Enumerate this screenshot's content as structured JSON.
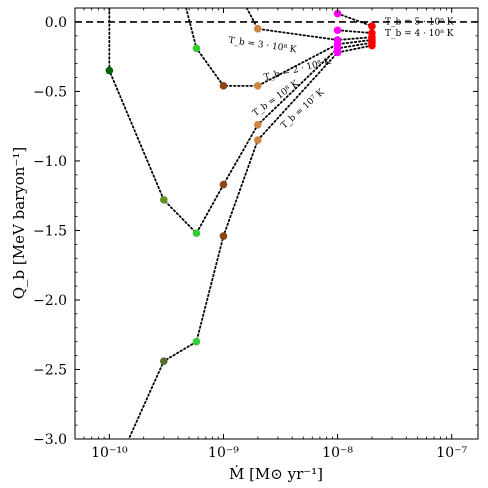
{
  "chart_data": {
    "type": "scatter",
    "xlabel": "Ṁ [M⊙ yr⁻¹]",
    "ylabel": "Q_b [MeV baryon⁻¹]",
    "xscale": "log",
    "xlim": [
      5e-11,
      1.7e-07
    ],
    "ylim": [
      -3.0,
      0.1
    ],
    "x_ticks": [
      1e-10,
      1e-09,
      1e-08,
      1e-07
    ],
    "x_tick_labels": [
      "10⁻¹⁰",
      "10⁻⁹",
      "10⁻⁸",
      "10⁻⁷"
    ],
    "y_ticks": [
      0.0,
      -0.5,
      -1.0,
      -1.5,
      -2.0,
      -2.5,
      -3.0
    ],
    "y_tick_labels": [
      "0.0",
      "−0.5",
      "−1.0",
      "−1.5",
      "−2.0",
      "−2.5",
      "−3.0"
    ],
    "reference_line": {
      "y": 0.0,
      "style": "dashed",
      "color": "#000000"
    },
    "series": [
      {
        "name": "T_b = 10⁷ K",
        "points": [
          {
            "x": 1.15e-10,
            "y": -3.2,
            "color": null
          },
          {
            "x": 3e-10,
            "y": -2.44,
            "color": "#556b2f"
          },
          {
            "x": 5.8e-10,
            "y": -2.3,
            "color": "#32cd32"
          },
          {
            "x": 1e-09,
            "y": -1.54,
            "color": "#8b4513"
          },
          {
            "x": 2e-09,
            "y": -0.85,
            "color": "#cd853f"
          },
          {
            "x": 1e-08,
            "y": -0.22,
            "color": "#ff00ff"
          },
          {
            "x": 2e-08,
            "y": -0.17,
            "color": "#ff0000"
          }
        ]
      },
      {
        "name": "T_b = 10⁸ K",
        "points": [
          {
            "x": 1e-10,
            "y": 0.1,
            "color": null
          },
          {
            "x": 1e-10,
            "y": -0.35,
            "color": "#006400"
          },
          {
            "x": 3e-10,
            "y": -1.28,
            "color": "#6b8e23"
          },
          {
            "x": 5.8e-10,
            "y": -1.52,
            "color": "#32cd32"
          },
          {
            "x": 1e-09,
            "y": -1.17,
            "color": "#8b4513"
          },
          {
            "x": 2e-09,
            "y": -0.74,
            "color": "#cd853f"
          },
          {
            "x": 1e-08,
            "y": -0.19,
            "color": "#ff00ff"
          },
          {
            "x": 2e-08,
            "y": -0.15,
            "color": "#ff0000"
          }
        ]
      },
      {
        "name": "T_b = 2 · 10⁸ K",
        "points": [
          {
            "x": 4.7e-10,
            "y": 0.1,
            "color": null
          },
          {
            "x": 5.8e-10,
            "y": -0.19,
            "color": "#32cd32"
          },
          {
            "x": 1e-09,
            "y": -0.46,
            "color": "#8b4513"
          },
          {
            "x": 2e-09,
            "y": -0.46,
            "color": "#cd853f"
          },
          {
            "x": 1e-08,
            "y": -0.16,
            "color": "#ff00ff"
          },
          {
            "x": 2e-08,
            "y": -0.13,
            "color": "#ff0000"
          }
        ]
      },
      {
        "name": "T_b = 3 · 10⁸ K",
        "points": [
          {
            "x": 1.6e-09,
            "y": 0.1,
            "color": null
          },
          {
            "x": 2e-09,
            "y": -0.05,
            "color": "#cd853f"
          },
          {
            "x": 1e-08,
            "y": -0.13,
            "color": "#ff00ff"
          },
          {
            "x": 2e-08,
            "y": -0.11,
            "color": "#ff0000"
          }
        ]
      },
      {
        "name": "T_b = 4 · 10⁸ K",
        "points": [
          {
            "x": 1e-08,
            "y": -0.06,
            "color": "#ff00ff"
          },
          {
            "x": 2e-08,
            "y": -0.08,
            "color": "#ff0000"
          }
        ]
      },
      {
        "name": "T_b = 5 · 10⁸ K",
        "points": [
          {
            "x": 1e-08,
            "y": 0.06,
            "color": "#ff00ff"
          },
          {
            "x": 2e-08,
            "y": -0.03,
            "color": "#ff0000"
          }
        ]
      }
    ],
    "annotations": [
      {
        "text": "T_b = 5 · 10⁸ K",
        "x": 2.6e-08,
        "y": -0.02,
        "rotate": 0
      },
      {
        "text": "T_b = 4 · 10⁸ K",
        "x": 2.6e-08,
        "y": -0.1,
        "rotate": 0
      },
      {
        "text": "T_b = 3 · 10⁸ K",
        "x": 1.1e-09,
        "y": -0.15,
        "rotate": 8
      },
      {
        "text": "T_b = 2 · 10⁸ K",
        "x": 2.3e-09,
        "y": -0.42,
        "rotate": -14
      },
      {
        "text": "T_b = 10⁸ K",
        "x": 1.9e-09,
        "y": -0.68,
        "rotate": -36
      },
      {
        "text": "T_b = 10⁷ K",
        "x": 3.4e-09,
        "y": -0.77,
        "rotate": -42
      }
    ]
  }
}
